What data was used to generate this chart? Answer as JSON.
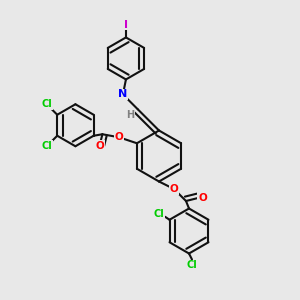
{
  "background_color": "#e8e8e8",
  "bond_color": "#000000",
  "atom_colors": {
    "Cl": "#00cc00",
    "O": "#ff0000",
    "N": "#0000ff",
    "H": "#808080",
    "I": "#cc00cc",
    "C": "#000000"
  },
  "figsize": [
    3.0,
    3.0
  ],
  "dpi": 100
}
